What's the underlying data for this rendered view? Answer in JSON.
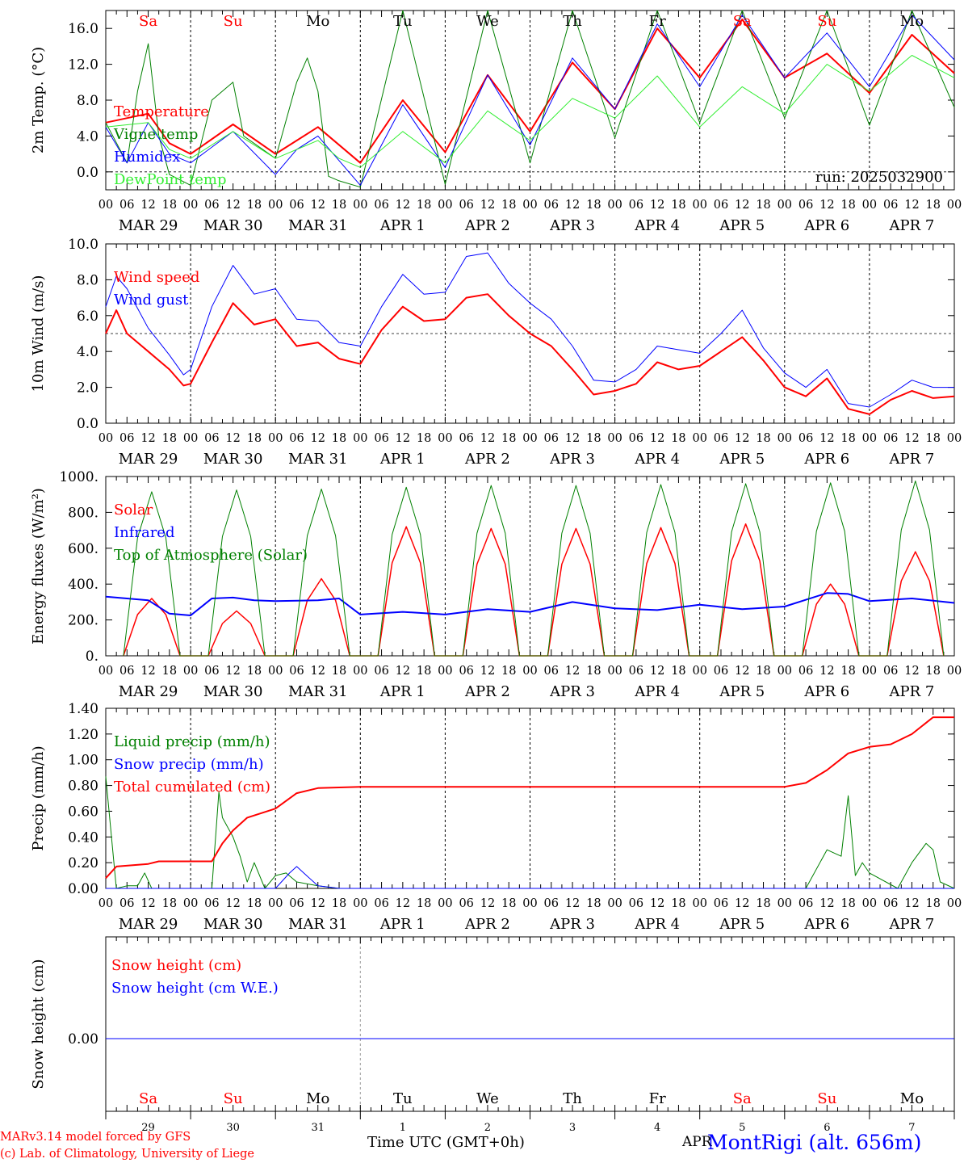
{
  "footer": {
    "model_line": "MARv3.14 model forced by GFS",
    "credit_line": "(c) Lab. of Climatology, University of Liege",
    "time_axis_label": "Time UTC (GMT+0h)",
    "month_label": "APR",
    "station": "MontRigi (alt. 656m)"
  },
  "colors": {
    "red": "#ff0000",
    "green": "#008000",
    "blue": "#0000ff",
    "lightgreen": "#33ee33",
    "text": "#000000"
  },
  "chart_data": {
    "type": "line",
    "x_unit": "hours since 2025-03-29 00 UTC",
    "days": [
      {
        "weekday": "Sa",
        "date": "MAR 29",
        "day": "29",
        "weekend": true
      },
      {
        "weekday": "Su",
        "date": "MAR 30",
        "day": "30",
        "weekend": true
      },
      {
        "weekday": "Mo",
        "date": "MAR 31",
        "day": "31",
        "weekend": false
      },
      {
        "weekday": "Tu",
        "date": "APR  1",
        "day": "1",
        "weekend": false
      },
      {
        "weekday": "We",
        "date": "APR  2",
        "day": "2",
        "weekend": false
      },
      {
        "weekday": "Th",
        "date": "APR  3",
        "day": "3",
        "weekend": false
      },
      {
        "weekday": "Fr",
        "date": "APR  4",
        "day": "4",
        "weekend": false
      },
      {
        "weekday": "Sa",
        "date": "APR  5",
        "day": "5",
        "weekend": true
      },
      {
        "weekday": "Su",
        "date": "APR  6",
        "day": "6",
        "weekend": true
      },
      {
        "weekday": "Mo",
        "date": "APR  7",
        "day": "7",
        "weekend": false
      }
    ],
    "hour_ticks": [
      "00",
      "06",
      "12",
      "18"
    ],
    "panels": [
      {
        "id": "temp",
        "ylabel": "2m Temp. (°C)",
        "ylim": [
          -2,
          18
        ],
        "yticks": [
          0,
          4,
          8,
          12,
          16
        ],
        "ytick_labels": [
          "0.0",
          "4.0",
          "8.0",
          "12.0",
          "16.0"
        ],
        "ref_line": 0,
        "annotation": "run: 2025032900",
        "series": [
          {
            "name": "Temperature",
            "color": "red",
            "width": 2,
            "x": [
              0,
              12,
              18,
              24,
              36,
              48,
              60,
              72,
              84,
              96,
              108,
              120,
              132,
              144,
              156,
              168,
              180,
              192,
              204,
              216,
              228,
              240
            ],
            "y": [
              5.5,
              6.5,
              3.2,
              2.0,
              5.3,
              2.0,
              5.0,
              1.0,
              8.0,
              2.2,
              10.8,
              4.5,
              12.2,
              7.0,
              16.0,
              10.5,
              17.0,
              10.5,
              13.2,
              8.8,
              15.3,
              11.0
            ]
          },
          {
            "name": "Vigne temp",
            "color": "green",
            "width": 1,
            "x": [
              0,
              6,
              9,
              12,
              15,
              18,
              24,
              30,
              36,
              39,
              48,
              54,
              57,
              60,
              63,
              66,
              72,
              84,
              96,
              108,
              120,
              132,
              144,
              156,
              168,
              180,
              192,
              204,
              216,
              228,
              240
            ],
            "y": [
              5.5,
              1.0,
              9.0,
              14.3,
              4.0,
              -0.3,
              -1.5,
              8.0,
              10.0,
              4.0,
              1.5,
              10.0,
              12.7,
              9.0,
              -0.5,
              -1.0,
              -1.7,
              18.5,
              -1.4,
              18.5,
              1.0,
              18.5,
              3.8,
              18.5,
              5.5,
              18.5,
              6.0,
              18.5,
              5.2,
              18.5,
              7.2
            ]
          },
          {
            "name": "Humidex",
            "color": "blue",
            "width": 1,
            "x": [
              0,
              6,
              12,
              18,
              24,
              36,
              48,
              54,
              60,
              72,
              84,
              96,
              108,
              120,
              132,
              144,
              156,
              168,
              180,
              192,
              204,
              216,
              228,
              240
            ],
            "y": [
              5.0,
              1.0,
              5.5,
              2.0,
              1.0,
              4.5,
              -0.3,
              2.5,
              4.0,
              -1.5,
              7.5,
              0.5,
              10.8,
              3.0,
              12.7,
              7.0,
              16.5,
              9.5,
              17.5,
              10.5,
              15.5,
              9.5,
              17.5,
              12.5
            ]
          },
          {
            "name": "DewPoint temp",
            "color": "lightgreen",
            "width": 1,
            "x": [
              0,
              12,
              18,
              24,
              36,
              48,
              60,
              66,
              72,
              84,
              96,
              108,
              120,
              132,
              144,
              156,
              168,
              180,
              192,
              204,
              216,
              228,
              240
            ],
            "y": [
              5.0,
              5.5,
              2.5,
              1.5,
              4.5,
              1.5,
              3.5,
              1.5,
              0.5,
              4.5,
              1.0,
              6.8,
              3.5,
              8.2,
              6.0,
              10.7,
              5.0,
              9.5,
              6.5,
              12.0,
              9.0,
              13.0,
              10.5
            ]
          }
        ]
      },
      {
        "id": "wind",
        "ylabel": "10m Wind (m/s)",
        "ylim": [
          0,
          10
        ],
        "yticks": [
          0,
          2,
          4,
          6,
          8,
          10
        ],
        "ytick_labels": [
          "0.0",
          "2.0",
          "4.0",
          "6.0",
          "8.0",
          "10.0"
        ],
        "ref_line": 5,
        "series": [
          {
            "name": "Wind speed",
            "color": "red",
            "width": 2,
            "x": [
              0,
              3,
              6,
              12,
              18,
              22,
              24,
              30,
              36,
              42,
              48,
              54,
              60,
              66,
              72,
              78,
              84,
              90,
              96,
              102,
              108,
              114,
              120,
              126,
              132,
              138,
              144,
              150,
              156,
              162,
              168,
              174,
              180,
              186,
              192,
              198,
              204,
              210,
              216,
              222,
              228,
              234,
              240
            ],
            "y": [
              5.0,
              6.3,
              5.0,
              4.0,
              3.0,
              2.1,
              2.2,
              4.5,
              6.7,
              5.5,
              5.8,
              4.3,
              4.5,
              3.6,
              3.3,
              5.2,
              6.5,
              5.7,
              5.8,
              7.0,
              7.2,
              6.0,
              5.0,
              4.3,
              3.0,
              1.6,
              1.8,
              2.2,
              3.4,
              3.0,
              3.2,
              4.0,
              4.8,
              3.5,
              2.0,
              1.5,
              2.5,
              0.8,
              0.5,
              1.3,
              1.8,
              1.4,
              1.5
            ]
          },
          {
            "name": "Wind gust",
            "color": "blue",
            "width": 1,
            "x": [
              0,
              3,
              6,
              12,
              18,
              22,
              24,
              30,
              36,
              42,
              48,
              54,
              60,
              66,
              72,
              78,
              84,
              90,
              96,
              102,
              108,
              114,
              120,
              126,
              132,
              138,
              144,
              150,
              156,
              162,
              168,
              174,
              180,
              186,
              192,
              198,
              204,
              210,
              216,
              222,
              228,
              234,
              240
            ],
            "y": [
              6.5,
              8.2,
              7.5,
              5.3,
              3.8,
              2.7,
              3.0,
              6.5,
              8.8,
              7.2,
              7.5,
              5.8,
              5.7,
              4.5,
              4.3,
              6.5,
              8.3,
              7.2,
              7.3,
              9.3,
              9.5,
              7.8,
              6.7,
              5.8,
              4.3,
              2.4,
              2.3,
              3.0,
              4.3,
              4.1,
              3.9,
              5.0,
              6.3,
              4.2,
              2.8,
              2.0,
              3.0,
              1.1,
              0.9,
              1.6,
              2.4,
              2.0,
              2.0
            ]
          }
        ]
      },
      {
        "id": "energy",
        "ylabel": "Energy fluxes (W/m²)",
        "ylim": [
          0,
          1000
        ],
        "yticks": [
          0,
          200,
          400,
          600,
          800,
          1000
        ],
        "ytick_labels": [
          "0.",
          "200.",
          "400.",
          "600.",
          "800.",
          "1000."
        ],
        "series": [
          {
            "name": "Solar",
            "color": "red",
            "width": 1.5,
            "day_peaks": [
              320,
              250,
              430,
              720,
              710,
              710,
              715,
              735,
              400,
              580
            ]
          },
          {
            "name": "Infrared",
            "color": "blue",
            "width": 2,
            "x": [
              0,
              12,
              18,
              24,
              30,
              36,
              42,
              48,
              60,
              66,
              72,
              84,
              96,
              108,
              120,
              132,
              144,
              156,
              168,
              180,
              192,
              204,
              210,
              216,
              228,
              240
            ],
            "y": [
              330,
              310,
              235,
              225,
              320,
              325,
              310,
              305,
              310,
              320,
              230,
              245,
              230,
              260,
              245,
              300,
              265,
              255,
              285,
              260,
              275,
              350,
              345,
              305,
              320,
              295
            ]
          },
          {
            "name": "Top of Atmosphere (Solar)",
            "color": "green",
            "width": 1,
            "day_peaks": [
              915,
              925,
              930,
              940,
              950,
              950,
              955,
              960,
              965,
              975
            ]
          }
        ]
      },
      {
        "id": "precip",
        "ylabel": "Precip (mm/h)",
        "ylim": [
          0,
          1.4
        ],
        "yticks": [
          0,
          0.2,
          0.4,
          0.6,
          0.8,
          1.0,
          1.2,
          1.4
        ],
        "ytick_labels": [
          "0.00",
          "0.20",
          "0.40",
          "0.60",
          "0.80",
          "1.00",
          "1.20",
          "1.40"
        ],
        "series": [
          {
            "name": "Liquid precip (mm/h)",
            "color": "green",
            "width": 1,
            "x": [
              0,
              3,
              6,
              9,
              11,
              13,
              15,
              30,
              32,
              33,
              36,
              38,
              40,
              42,
              45,
              48,
              51,
              54,
              60,
              66,
              72,
              192,
              198,
              204,
              208,
              210,
              212,
              214,
              216,
              224,
              228,
              232,
              234,
              236,
              240
            ],
            "y": [
              0.87,
              0.0,
              0.02,
              0.02,
              0.12,
              0.0,
              0.0,
              0.0,
              0.75,
              0.55,
              0.4,
              0.25,
              0.05,
              0.2,
              0.0,
              0.1,
              0.12,
              0.05,
              0.02,
              0.0,
              0.0,
              0.0,
              0.0,
              0.3,
              0.25,
              0.72,
              0.1,
              0.2,
              0.12,
              0.0,
              0.2,
              0.35,
              0.3,
              0.05,
              0.0
            ]
          },
          {
            "name": "Snow precip (mm/h)",
            "color": "blue",
            "width": 1,
            "x": [
              0,
              24,
              48,
              52,
              54,
              56,
              60,
              66,
              240
            ],
            "y": [
              0.0,
              0.0,
              0.0,
              0.12,
              0.17,
              0.12,
              0.02,
              0.0,
              0.0
            ]
          },
          {
            "name": "Total cumulated (cm)",
            "color": "red",
            "width": 2,
            "x": [
              0,
              3,
              12,
              15,
              30,
              33,
              36,
              40,
              48,
              54,
              60,
              72,
              192,
              198,
              204,
              210,
              216,
              222,
              228,
              234,
              240
            ],
            "y": [
              0.08,
              0.17,
              0.19,
              0.21,
              0.21,
              0.35,
              0.45,
              0.55,
              0.62,
              0.74,
              0.78,
              0.79,
              0.79,
              0.82,
              0.92,
              1.05,
              1.1,
              1.12,
              1.2,
              1.33,
              1.33
            ]
          }
        ]
      },
      {
        "id": "snow",
        "ylabel": "Snow height (cm)",
        "yticks": [
          0
        ],
        "ytick_labels": [
          "0.00"
        ],
        "series": [
          {
            "name": "Snow height (cm)",
            "color": "red",
            "values": [
              0
            ]
          },
          {
            "name": "Snow height (cm W.E.)",
            "color": "blue",
            "values": [
              0
            ]
          }
        ]
      }
    ]
  }
}
